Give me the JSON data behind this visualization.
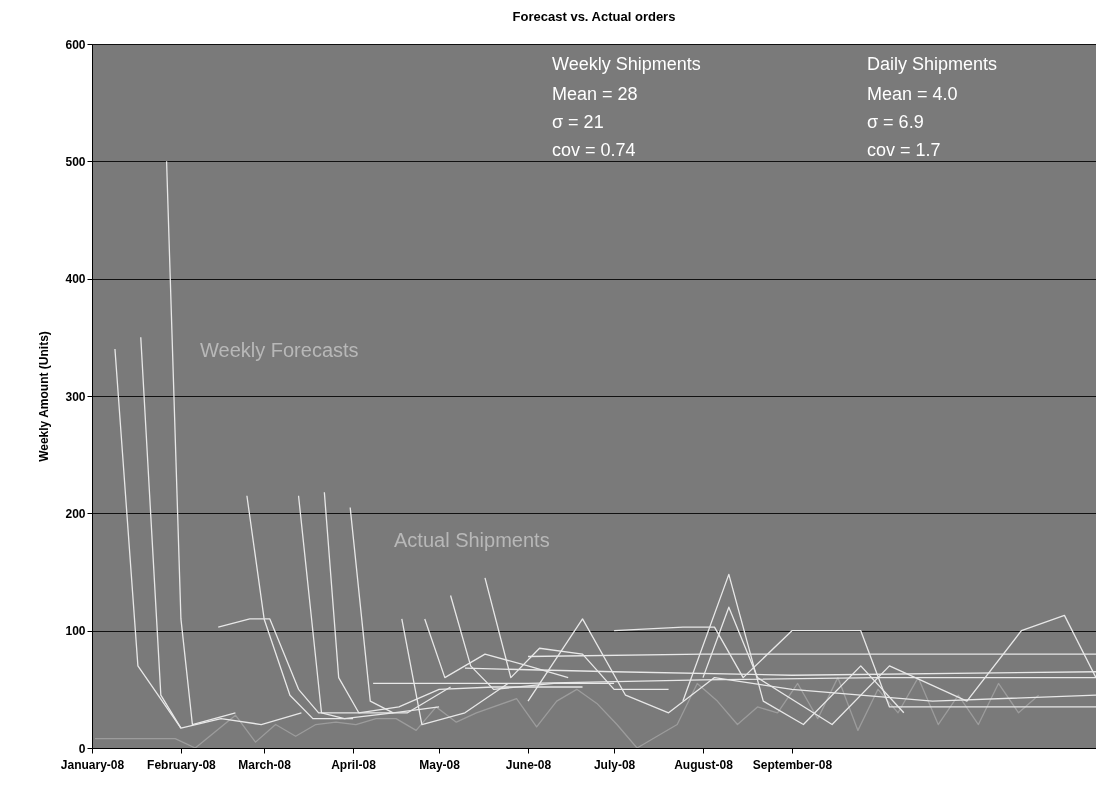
{
  "chart_data": {
    "type": "line",
    "title": "Forecast vs. Actual orders",
    "ylabel": "Weekly Amount (Units)",
    "xlim": [
      "2008-01-01",
      "2008-12-16"
    ],
    "xticks": [
      {
        "value": "2008-01-01",
        "label": "January-08"
      },
      {
        "value": "2008-02-01",
        "label": "February-08"
      },
      {
        "value": "2008-03-01",
        "label": "March-08"
      },
      {
        "value": "2008-04-01",
        "label": "April-08"
      },
      {
        "value": "2008-05-01",
        "label": "May-08"
      },
      {
        "value": "2008-06-01",
        "label": "June-08"
      },
      {
        "value": "2008-07-01",
        "label": "July-08"
      },
      {
        "value": "2008-08-01",
        "label": "August-08"
      },
      {
        "value": "2008-09-01",
        "label": "September-08"
      }
    ],
    "ylim": [
      0,
      600
    ],
    "yticks": [
      0,
      100,
      200,
      300,
      400,
      500,
      600
    ],
    "grid": "y",
    "line_style": "solid",
    "annotations": [
      "Weekly Shipments",
      "Mean = 28",
      "σ = 21",
      "cov = 0.74",
      "Daily Shipments",
      "Mean = 4.0",
      "σ = 6.9",
      "cov = 1.7",
      "Weekly Forecasts",
      "Actual Shipments"
    ],
    "series": [
      {
        "color": "#9c9c9c",
        "x": [
          "2008-01-02",
          "2008-01-30",
          "2008-02-06",
          "2008-02-20",
          "2008-02-27",
          "2008-03-05",
          "2008-03-12",
          "2008-03-19",
          "2008-03-26",
          "2008-04-02",
          "2008-04-09",
          "2008-04-16",
          "2008-04-23",
          "2008-04-30",
          "2008-05-07",
          "2008-05-14",
          "2008-05-28",
          "2008-06-04",
          "2008-06-11",
          "2008-06-18",
          "2008-06-25",
          "2008-07-02",
          "2008-07-09",
          "2008-07-16",
          "2008-07-23",
          "2008-07-30",
          "2008-08-06",
          "2008-08-13",
          "2008-08-20",
          "2008-08-27",
          "2008-09-03",
          "2008-09-10",
          "2008-09-17",
          "2008-09-24",
          "2008-10-01",
          "2008-10-08",
          "2008-10-15",
          "2008-10-22",
          "2008-10-29",
          "2008-11-05",
          "2008-11-12",
          "2008-11-19",
          "2008-11-26"
        ],
        "values": [
          8,
          8,
          0,
          28,
          5,
          20,
          10,
          20,
          22,
          20,
          25,
          25,
          15,
          35,
          22,
          30,
          42,
          18,
          40,
          50,
          38,
          20,
          0,
          10,
          20,
          55,
          40,
          20,
          35,
          30,
          55,
          25,
          60,
          15,
          50,
          30,
          60,
          20,
          45,
          20,
          55,
          30,
          45
        ]
      },
      {
        "color": "#e8e8e8",
        "x": [
          "2008-01-09",
          "2008-01-17",
          "2008-02-01",
          "2008-02-15",
          "2008-02-29",
          "2008-03-14"
        ],
        "values": [
          340,
          70,
          17,
          25,
          20,
          30
        ]
      },
      {
        "color": "#e8e8e8",
        "x": [
          "2008-01-18",
          "2008-01-25",
          "2008-02-01"
        ],
        "values": [
          350,
          45,
          17
        ]
      },
      {
        "color": "#e8e8e8",
        "x": [
          "2008-01-27",
          "2008-02-01",
          "2008-02-05",
          "2008-02-20"
        ],
        "values": [
          500,
          110,
          20,
          30
        ]
      },
      {
        "color": "#e8e8e8",
        "x": [
          "2008-02-24",
          "2008-03-01",
          "2008-03-10",
          "2008-03-18",
          "2008-04-01"
        ],
        "values": [
          215,
          110,
          45,
          25,
          25
        ]
      },
      {
        "color": "#e8e8e8",
        "x": [
          "2008-03-13",
          "2008-03-21",
          "2008-03-29",
          "2008-04-15"
        ],
        "values": [
          215,
          30,
          25,
          30
        ]
      },
      {
        "color": "#e8e8e8",
        "x": [
          "2008-03-22",
          "2008-03-27",
          "2008-04-03",
          "2008-04-20",
          "2008-05-05"
        ],
        "values": [
          218,
          60,
          30,
          30,
          52
        ]
      },
      {
        "color": "#e8e8e8",
        "x": [
          "2008-03-31",
          "2008-04-07",
          "2008-04-15",
          "2008-05-01"
        ],
        "values": [
          205,
          40,
          30,
          35
        ]
      },
      {
        "color": "#e8e8e8",
        "x": [
          "2008-02-14",
          "2008-02-25",
          "2008-03-03",
          "2008-03-13",
          "2008-03-20",
          "2008-04-03",
          "2008-04-17",
          "2008-05-01",
          "2008-05-20",
          "2008-06-20"
        ],
        "values": [
          103,
          110,
          110,
          50,
          30,
          30,
          35,
          50,
          52,
          52
        ]
      },
      {
        "color": "#e8e8e8",
        "x": [
          "2008-04-26",
          "2008-05-03",
          "2008-05-17",
          "2008-06-01",
          "2008-06-15"
        ],
        "values": [
          110,
          60,
          80,
          70,
          60
        ]
      },
      {
        "color": "#e8e8e8",
        "x": [
          "2008-04-18",
          "2008-04-25",
          "2008-05-10",
          "2008-05-25"
        ],
        "values": [
          110,
          20,
          30,
          55
        ]
      },
      {
        "color": "#e8e8e8",
        "x": [
          "2008-05-05",
          "2008-05-12",
          "2008-05-20",
          "2008-06-10",
          "2008-07-01"
        ],
        "values": [
          130,
          70,
          50,
          55,
          55
        ]
      },
      {
        "color": "#e8e8e8",
        "x": [
          "2008-05-17",
          "2008-05-26",
          "2008-06-05",
          "2008-06-20",
          "2008-07-01",
          "2008-07-20"
        ],
        "values": [
          145,
          60,
          85,
          80,
          50,
          50
        ]
      },
      {
        "color": "#e8e8e8",
        "x": [
          "2008-04-08",
          "2008-06-01",
          "2008-08-01",
          "2008-10-01",
          "2008-12-16"
        ],
        "values": [
          55,
          55,
          58,
          60,
          60
        ]
      },
      {
        "color": "#e8e8e8",
        "x": [
          "2008-05-10",
          "2008-07-01",
          "2008-09-01",
          "2008-12-16"
        ],
        "values": [
          68,
          65,
          62,
          65
        ]
      },
      {
        "color": "#e8e8e8",
        "x": [
          "2008-06-01",
          "2008-08-01",
          "2008-10-01",
          "2008-12-16"
        ],
        "values": [
          78,
          80,
          80,
          80
        ]
      },
      {
        "color": "#e8e8e8",
        "x": [
          "2008-07-01",
          "2008-07-25",
          "2008-08-05",
          "2008-08-15",
          "2008-09-01",
          "2008-09-25",
          "2008-10-05",
          "2008-12-16"
        ],
        "values": [
          100,
          103,
          103,
          60,
          100,
          100,
          35,
          35
        ]
      },
      {
        "color": "#e8e8e8",
        "x": [
          "2008-07-25",
          "2008-08-10",
          "2008-08-22",
          "2008-09-05",
          "2008-09-25",
          "2008-10-10"
        ],
        "values": [
          40,
          148,
          40,
          20,
          70,
          30
        ]
      },
      {
        "color": "#e8e8e8",
        "x": [
          "2008-08-01",
          "2008-08-10",
          "2008-08-20",
          "2008-09-15",
          "2008-10-05",
          "2008-11-01",
          "2008-11-20",
          "2008-12-05",
          "2008-12-16"
        ],
        "values": [
          60,
          120,
          60,
          20,
          70,
          40,
          100,
          113,
          60
        ]
      },
      {
        "color": "#e8e8e8",
        "x": [
          "2008-06-01",
          "2008-06-20",
          "2008-07-05",
          "2008-07-20",
          "2008-08-05",
          "2008-09-01",
          "2008-10-20",
          "2008-12-16"
        ],
        "values": [
          40,
          110,
          45,
          30,
          60,
          50,
          40,
          45
        ]
      }
    ]
  }
}
